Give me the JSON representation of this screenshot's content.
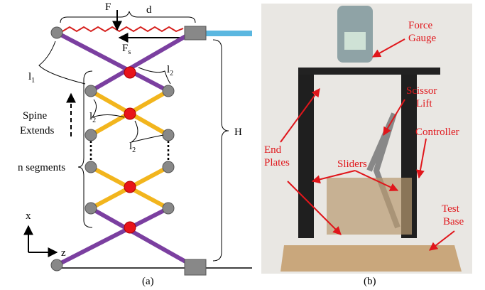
{
  "panel_a": {
    "force": "F",
    "distance": "d",
    "spring_force": {
      "base": "F",
      "sub": "s"
    },
    "length_1": {
      "base": "l",
      "sub": "1"
    },
    "length_2": [
      {
        "base": "l",
        "sub": "2"
      },
      {
        "base": "l",
        "sub": "2"
      },
      {
        "base": "l",
        "sub": "2"
      }
    ],
    "spine_label": [
      "Spine",
      "Extends"
    ],
    "segments_label": "n segments",
    "height": "H",
    "axis_x": "x",
    "axis_z": "z",
    "caption": "(a)"
  },
  "panel_b": {
    "labels": [
      [
        "Force",
        "Gauge"
      ],
      [
        "Scissor",
        "Lift"
      ],
      [
        "Controller"
      ],
      [
        "End",
        "Plates"
      ],
      [
        "Sliders"
      ],
      [
        "Test",
        "Base"
      ]
    ],
    "caption": "(b)"
  }
}
